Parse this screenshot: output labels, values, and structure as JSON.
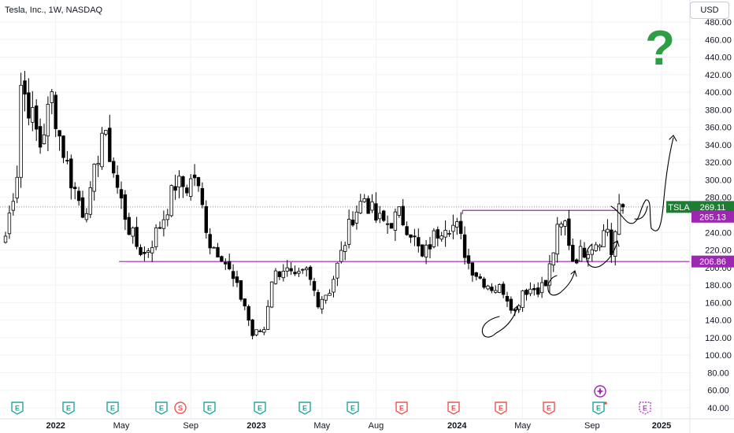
{
  "header": {
    "title": "Tesla, Inc., 1W, NASDAQ",
    "currency": "USD"
  },
  "annotation": {
    "question_mark": "?"
  },
  "price_badges": [
    {
      "ticker": "TSLA",
      "value": "269.11",
      "color": "#1e7d32"
    },
    {
      "value": "265.13",
      "color": "#9c27b0"
    },
    {
      "value": "206.86",
      "color": "#9c27b0"
    }
  ],
  "events": [
    "E",
    "E",
    "E",
    "E",
    "S",
    "E",
    "E",
    "E",
    "E",
    "E",
    "E",
    "E",
    "E",
    "E",
    "E"
  ],
  "colors": {
    "up": "#ffffff",
    "down": "#000000",
    "support_line": "#9c27b0",
    "earnings_past": "#26a69a",
    "earnings_neg": "#ef5350",
    "earnings_future": "#ab47bc",
    "question": "#2e9e44"
  },
  "chart_data": {
    "type": "candlestick",
    "title": "Tesla, Inc., 1W, NASDAQ",
    "y_ticks": [
      40,
      60,
      80,
      100,
      120,
      140,
      160,
      180,
      200,
      220,
      240,
      260,
      280,
      300,
      320,
      340,
      360,
      380,
      400,
      420,
      440,
      460,
      480
    ],
    "y_tick_labels": [
      "40.00",
      "60.00",
      "80.00",
      "100.00",
      "120.00",
      "140.00",
      "160.00",
      "180.00",
      "200.00",
      "220.00",
      "240.00",
      "260.00",
      "280.00",
      "300.00",
      "320.00",
      "340.00",
      "360.00",
      "380.00",
      "400.00",
      "420.00",
      "440.00",
      "460.00",
      "480.00"
    ],
    "ylim": [
      36,
      490
    ],
    "x_labels": [
      "2022",
      "May",
      "Sep",
      "2023",
      "May",
      "Aug",
      "2024",
      "May",
      "Sep",
      "2025"
    ],
    "x_label_dates": [
      "2022-01-03",
      "2022-05-02",
      "2022-09-05",
      "2023-01-02",
      "2023-05-01",
      "2023-08-07",
      "2024-01-01",
      "2024-04-29",
      "2024-09-02",
      "2025-01-06"
    ],
    "horizontal_levels": [
      {
        "value": 206.86,
        "start": "2022-04-25"
      },
      {
        "value": 265.13,
        "start": "2024-01-08",
        "end": "2024-10-21"
      }
    ],
    "last_price": 269.11,
    "anchors": [
      [
        "2021-10-04",
        236
      ],
      [
        "2021-10-25",
        310
      ],
      [
        "2021-11-01",
        410
      ],
      [
        "2021-11-15",
        385
      ],
      [
        "2021-12-06",
        340
      ],
      [
        "2021-12-27",
        395
      ],
      [
        "2022-01-10",
        350
      ],
      [
        "2022-01-31",
        300
      ],
      [
        "2022-02-21",
        265
      ],
      [
        "2022-03-07",
        280
      ],
      [
        "2022-03-28",
        355
      ],
      [
        "2022-04-11",
        330
      ],
      [
        "2022-04-25",
        290
      ],
      [
        "2022-05-16",
        245
      ],
      [
        "2022-05-30",
        225
      ],
      [
        "2022-06-13",
        215
      ],
      [
        "2022-06-27",
        230
      ],
      [
        "2022-07-18",
        258
      ],
      [
        "2022-08-08",
        295
      ],
      [
        "2022-08-29",
        292
      ],
      [
        "2022-09-12",
        305
      ],
      [
        "2022-09-26",
        268
      ],
      [
        "2022-10-10",
        228
      ],
      [
        "2022-10-31",
        216
      ],
      [
        "2022-11-21",
        185
      ],
      [
        "2022-12-12",
        157
      ],
      [
        "2022-12-26",
        123
      ],
      [
        "2023-01-16",
        130
      ],
      [
        "2023-01-30",
        188
      ],
      [
        "2023-02-20",
        200
      ],
      [
        "2023-03-13",
        185
      ],
      [
        "2023-04-03",
        195
      ],
      [
        "2023-04-24",
        162
      ],
      [
        "2023-05-15",
        175
      ],
      [
        "2023-06-05",
        215
      ],
      [
        "2023-06-26",
        260
      ],
      [
        "2023-07-17",
        280
      ],
      [
        "2023-08-07",
        255
      ],
      [
        "2023-08-28",
        250
      ],
      [
        "2023-09-18",
        260
      ],
      [
        "2023-10-09",
        242
      ],
      [
        "2023-10-30",
        210
      ],
      [
        "2023-11-20",
        235
      ],
      [
        "2023-12-11",
        252
      ],
      [
        "2024-01-01",
        245
      ],
      [
        "2024-01-22",
        205
      ],
      [
        "2024-02-12",
        188
      ],
      [
        "2024-03-04",
        178
      ],
      [
        "2024-03-25",
        175
      ],
      [
        "2024-04-15",
        150
      ],
      [
        "2024-04-29",
        175
      ],
      [
        "2024-05-20",
        176
      ],
      [
        "2024-06-10",
        180
      ],
      [
        "2024-07-01",
        240
      ],
      [
        "2024-07-15",
        250
      ],
      [
        "2024-07-29",
        210
      ],
      [
        "2024-08-19",
        220
      ],
      [
        "2024-09-09",
        230
      ],
      [
        "2024-09-30",
        245
      ],
      [
        "2024-10-07",
        217
      ],
      [
        "2024-10-21",
        263
      ],
      [
        "2024-10-28",
        269
      ]
    ]
  }
}
